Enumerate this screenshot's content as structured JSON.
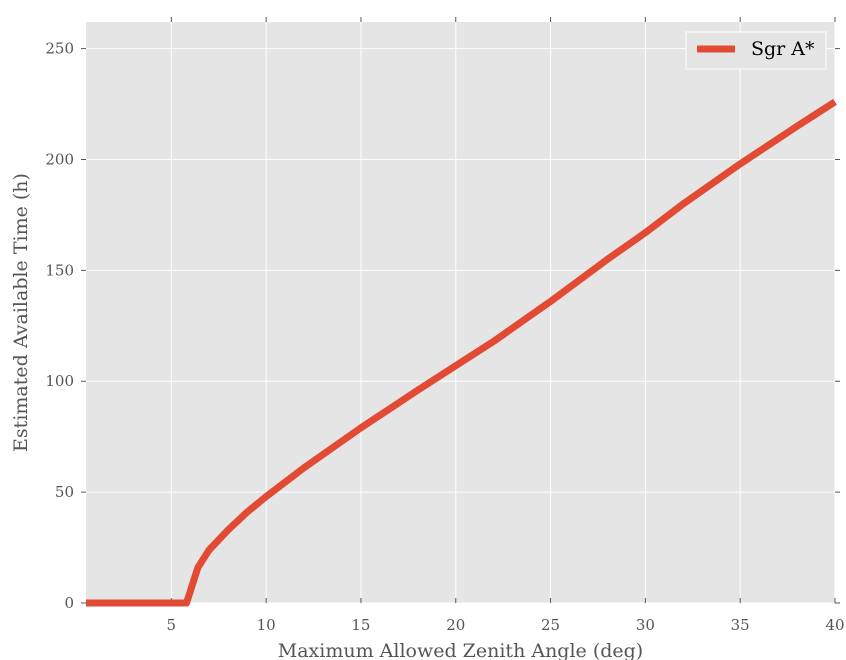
{
  "chart_data": {
    "type": "line",
    "title": "",
    "xlabel": "Maximum Allowed Zenith Angle (deg)",
    "ylabel": "Estimated Available Time (h)",
    "xlim": [
      0.5,
      40
    ],
    "ylim": [
      0,
      262
    ],
    "xticks": [
      5,
      10,
      15,
      20,
      25,
      30,
      35,
      40
    ],
    "xtick_labels": [
      "5",
      "10",
      "15",
      "20",
      "25",
      "30",
      "35",
      "40"
    ],
    "yticks": [
      0,
      50,
      100,
      150,
      200,
      250
    ],
    "ytick_labels": [
      "0",
      "50",
      "100",
      "150",
      "200",
      "250"
    ],
    "grid": true,
    "legend": {
      "position": "top-right"
    },
    "background_color": "#e5e5e5",
    "grid_color": "#ffffff",
    "series": [
      {
        "name": "Sgr A*",
        "color": "#e24a33",
        "x": [
          0.5,
          2,
          4,
          5.8,
          6.4,
          7,
          8,
          9,
          10,
          12,
          15,
          18,
          20,
          22,
          25,
          28,
          30,
          32,
          35,
          38,
          40
        ],
        "y": [
          0,
          0,
          0,
          0,
          16,
          24,
          33,
          41,
          48,
          61,
          79,
          96,
          107,
          118,
          136,
          155,
          167,
          180,
          198,
          215,
          226
        ]
      }
    ]
  }
}
